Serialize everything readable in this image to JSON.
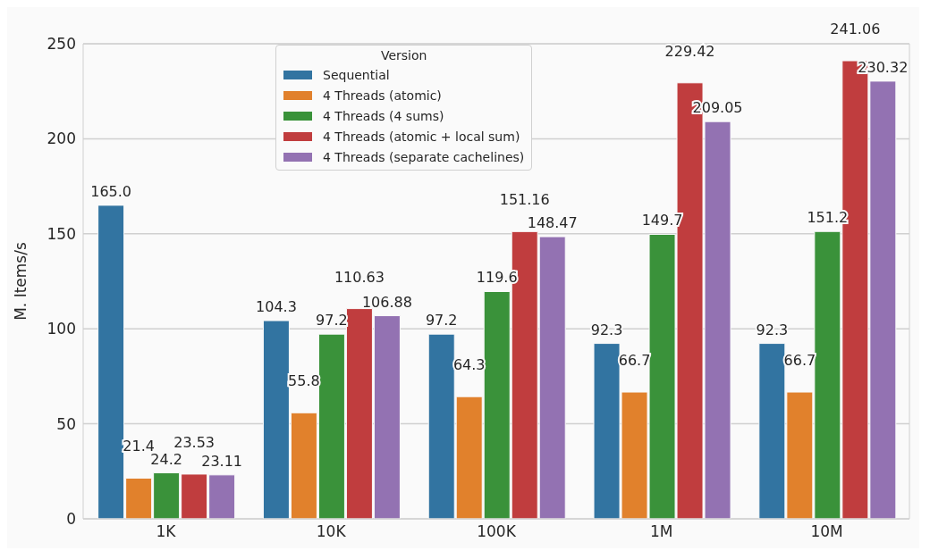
{
  "chart_data": {
    "type": "bar",
    "ylabel": "M. Items/s",
    "legend_title": "Version",
    "categories": [
      "1K",
      "10K",
      "100K",
      "1M",
      "10M"
    ],
    "series": [
      {
        "name": "Sequential",
        "color": "#3274a1",
        "values": [
          165.0,
          104.3,
          97.2,
          92.3,
          92.3
        ],
        "value_labels": [
          "165.0",
          "104.3",
          "97.2",
          "92.3",
          "92.3"
        ]
      },
      {
        "name": "4 Threads (atomic)",
        "color": "#e1812c",
        "values": [
          21.4,
          55.8,
          64.3,
          66.7,
          66.7
        ],
        "value_labels": [
          "21.4",
          "55.8",
          "64.3",
          "66.7",
          "66.7"
        ]
      },
      {
        "name": "4 Threads (4 sums)",
        "color": "#3a923a",
        "values": [
          24.2,
          97.2,
          119.6,
          149.7,
          151.2
        ],
        "value_labels": [
          "24.2",
          "97.2",
          "119.6",
          "149.7",
          "151.2"
        ]
      },
      {
        "name": "4 Threads (atomic + local sum)",
        "color": "#c03d3e",
        "values": [
          23.53,
          110.63,
          151.16,
          229.42,
          241.06
        ],
        "value_labels": [
          "23.53",
          "110.63",
          "151.16",
          "229.42",
          "241.06"
        ]
      },
      {
        "name": "4 Threads (separate cachelines)",
        "color": "#9372b2",
        "values": [
          23.11,
          106.88,
          148.47,
          209.05,
          230.32
        ],
        "value_labels": [
          "23.11",
          "106.88",
          "148.47",
          "209.05",
          "230.32"
        ]
      }
    ],
    "ylim": [
      0,
      250
    ],
    "yticks": [
      0,
      50,
      100,
      150,
      200,
      250
    ],
    "grid": "y",
    "legend": "top"
  }
}
